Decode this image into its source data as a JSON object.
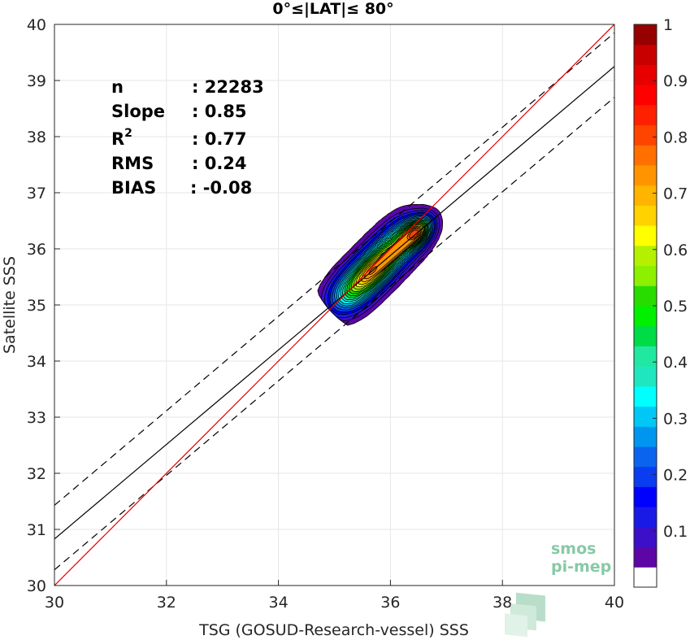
{
  "chart_data": {
    "type": "heatmap",
    "title": "0°≤|LAT|≤ 80°",
    "xlabel": "TSG (GOSUD-Research-vessel) SSS",
    "ylabel": "Satellite SSS",
    "xlim": [
      30,
      40
    ],
    "ylim": [
      30,
      40
    ],
    "xticks": [
      30,
      32,
      34,
      36,
      38,
      40
    ],
    "yticks": [
      30,
      31,
      32,
      33,
      34,
      35,
      36,
      37,
      38,
      39,
      40
    ],
    "grid": true,
    "stats": [
      {
        "label": "n",
        "value": ": 22283"
      },
      {
        "label": "Slope",
        "value": ": 0.85"
      },
      {
        "label": "R",
        "sup": "2",
        "value": ": 0.77"
      },
      {
        "label": "RMS",
        "value": ": 0.24"
      },
      {
        "label": "BIAS",
        "value": ": -0.08"
      }
    ],
    "lines": {
      "identity": {
        "x": [
          30,
          40
        ],
        "y": [
          30,
          40
        ],
        "color": "#e00000"
      },
      "fit": {
        "x": [
          30,
          40
        ],
        "y": [
          30.83,
          39.25
        ],
        "color": "#000000"
      },
      "fit_upper": {
        "x": [
          30,
          40
        ],
        "y": [
          31.43,
          39.85
        ],
        "color": "#000000",
        "dash": true
      },
      "fit_lower": {
        "x": [
          30,
          40
        ],
        "y": [
          30.28,
          38.7
        ],
        "color": "#000000",
        "dash": true
      }
    },
    "density_peaks": [
      {
        "x": 36.48,
        "y": 36.3,
        "value": 1.0
      },
      {
        "x": 35.7,
        "y": 35.6,
        "value": 0.68
      }
    ],
    "colorbar": {
      "range": [
        0,
        1
      ],
      "ticks": [
        "0.1",
        "0.2",
        "0.3",
        "0.4",
        "0.5",
        "0.6",
        "0.7",
        "0.8",
        "0.9",
        "1"
      ],
      "colors": [
        "#ffffff",
        "#5c06a6",
        "#3b10c8",
        "#1a1ae6",
        "#0000ff",
        "#0a3cf0",
        "#0a64ee",
        "#0096f0",
        "#00c8f6",
        "#00ffff",
        "#20e6c0",
        "#20e8a0",
        "#00dc46",
        "#00f000",
        "#28dc00",
        "#8cf000",
        "#b4f000",
        "#ffff00",
        "#ffd200",
        "#ffb400",
        "#ff9400",
        "#ff7000",
        "#ff4400",
        "#ff2000",
        "#ff0000",
        "#e60000",
        "#c80000",
        "#960000"
      ]
    }
  },
  "logo": {
    "line1": "smos",
    "line2": "pi-mep"
  }
}
